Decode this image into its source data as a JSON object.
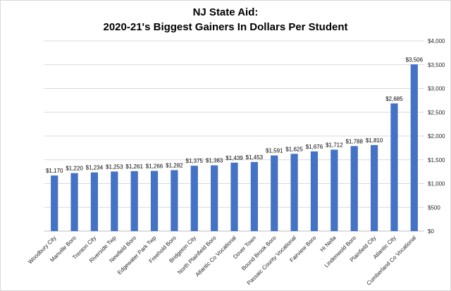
{
  "chart_data": {
    "type": "bar",
    "title_lines": [
      "NJ State Aid:",
      "2020-21's Biggest Gainers In Dollars Per Student"
    ],
    "categories": [
      "Woodbury City",
      "Manville Boro",
      "Trenton City",
      "Riverside Twp",
      "Newfield Boro",
      "Edgewater Park Twp",
      "Freehold Boro",
      "Bridgeton City",
      "North Plainfield Boro",
      "Atlantic Co Vocational",
      "Dover Town",
      "Bound Brook Boro",
      "Passaic County Vocational",
      "Fairview Boro",
      "Hi Nella",
      "Lindenwold Boro",
      "Plainfield City",
      "Atlantic City",
      "Cumberland Co Vocational"
    ],
    "values": [
      1170,
      1220,
      1234,
      1253,
      1261,
      1266,
      1282,
      1375,
      1383,
      1439,
      1453,
      1591,
      1625,
      1676,
      1712,
      1788,
      1810,
      2685,
      3506
    ],
    "data_labels": [
      "$1,170",
      "$1,220",
      "$1,234",
      "$1,253",
      "$1,261",
      "$1,266",
      "$1,282",
      "$1,375",
      "$1,383",
      "$1,439",
      "$1,453",
      "$1,591",
      "$1,625",
      "$1,676",
      "$1,712",
      "$1,788",
      "$1,810",
      "$2,685",
      "$3,506"
    ],
    "ylim": [
      0,
      4000
    ],
    "y_ticks": [
      0,
      500,
      1000,
      1500,
      2000,
      2500,
      3000,
      3500,
      4000
    ],
    "y_tick_labels": [
      "$0",
      "$500",
      "$1,000",
      "$1,500",
      "$2,000",
      "$2,500",
      "$3,000",
      "$3,500",
      "$4,000"
    ],
    "y_axis_side": "right",
    "grid": true,
    "xlabel": "",
    "ylabel": "",
    "colors": {
      "bar": "#4472c4",
      "grid": "#d9d9d9",
      "axis": "#bfbfbf"
    }
  }
}
